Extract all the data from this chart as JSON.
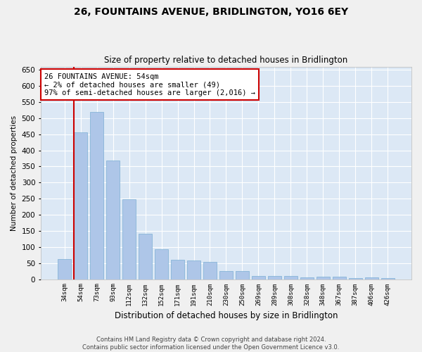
{
  "title1": "26, FOUNTAINS AVENUE, BRIDLINGTON, YO16 6EY",
  "title2": "Size of property relative to detached houses in Bridlington",
  "xlabel": "Distribution of detached houses by size in Bridlington",
  "ylabel": "Number of detached properties",
  "footer1": "Contains HM Land Registry data © Crown copyright and database right 2024.",
  "footer2": "Contains public sector information licensed under the Open Government Licence v3.0.",
  "annotation_line1": "26 FOUNTAINS AVENUE: 54sqm",
  "annotation_line2": "← 2% of detached houses are smaller (49)",
  "annotation_line3": "97% of semi-detached houses are larger (2,016) →",
  "categories": [
    "34sqm",
    "54sqm",
    "73sqm",
    "93sqm",
    "112sqm",
    "132sqm",
    "152sqm",
    "171sqm",
    "191sqm",
    "210sqm",
    "230sqm",
    "250sqm",
    "269sqm",
    "289sqm",
    "308sqm",
    "328sqm",
    "348sqm",
    "367sqm",
    "387sqm",
    "406sqm",
    "426sqm"
  ],
  "values": [
    62,
    455,
    520,
    368,
    248,
    140,
    92,
    60,
    57,
    54,
    26,
    26,
    11,
    10,
    11,
    5,
    7,
    7,
    4,
    6,
    4
  ],
  "bar_color": "#aec6e8",
  "bar_edge_color": "#7bafd4",
  "vline_color": "#cc0000",
  "vline_bar_index": 1,
  "bg_color": "#dce8f5",
  "grid_color": "#ffffff",
  "fig_bg_color": "#f0f0f0",
  "annotation_box_edge_color": "#cc0000",
  "ylim": [
    0,
    660
  ],
  "yticks": [
    0,
    50,
    100,
    150,
    200,
    250,
    300,
    350,
    400,
    450,
    500,
    550,
    600,
    650
  ]
}
